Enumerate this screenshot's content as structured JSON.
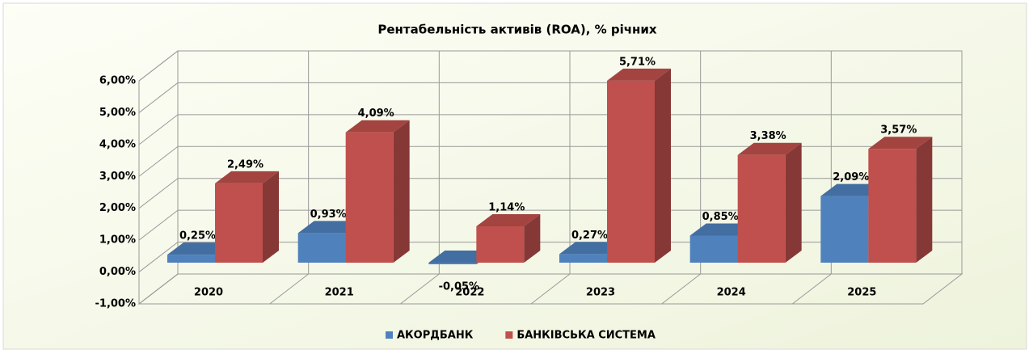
{
  "chart_data": {
    "type": "bar3d",
    "title": "Рентабельність активів (ROA), % річних",
    "categories": [
      "2020",
      "2021",
      "2022",
      "2023",
      "2024",
      "2025"
    ],
    "series": [
      {
        "name": "АКОРДБАНК",
        "color": "#4f81bd",
        "values": [
          0.25,
          0.93,
          -0.05,
          0.27,
          0.85,
          2.09
        ],
        "value_labels": [
          "0,25%",
          "0,93%",
          "-0,05%",
          "0,27%",
          "0,85%",
          "2,09%"
        ]
      },
      {
        "name": "БАНКІВСЬКА СИСТЕМА",
        "color": "#c0504d",
        "values": [
          2.49,
          4.09,
          1.14,
          5.71,
          3.38,
          3.57
        ],
        "value_labels": [
          "2,49%",
          "4,09%",
          "1,14%",
          "5,71%",
          "3,38%",
          "3,57%"
        ]
      }
    ],
    "ylim": [
      -1,
      6
    ],
    "yticks": [
      {
        "value": -1,
        "label": "-1,00%"
      },
      {
        "value": 0,
        "label": "0,00%"
      },
      {
        "value": 1,
        "label": "1,00%"
      },
      {
        "value": 2,
        "label": "2,00%"
      },
      {
        "value": 3,
        "label": "3,00%"
      },
      {
        "value": 4,
        "label": "4,00%"
      },
      {
        "value": 5,
        "label": "5,00%"
      },
      {
        "value": 6,
        "label": "6,00%"
      }
    ],
    "grid": true,
    "legend": "bottom"
  }
}
